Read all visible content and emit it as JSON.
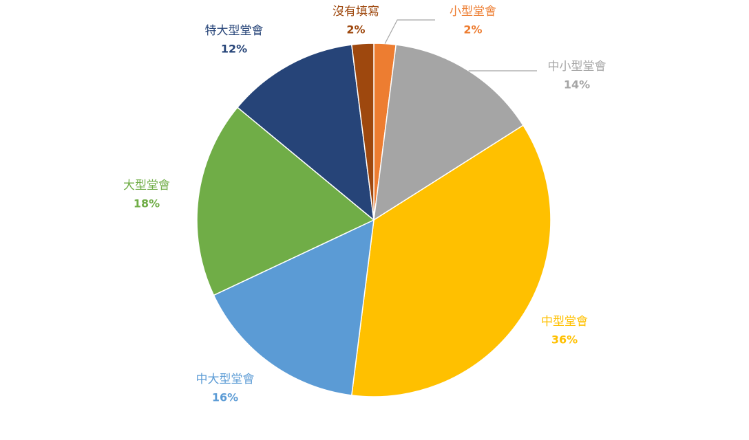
{
  "chart_data": {
    "type": "pie",
    "categories": [
      "小型堂會",
      "中小型堂會",
      "中型堂會",
      "中大型堂會",
      "大型堂會",
      "特大型堂會",
      "沒有填寫"
    ],
    "values": [
      2,
      14,
      36,
      16,
      18,
      12,
      2
    ],
    "value_labels": [
      "2%",
      "14%",
      "36%",
      "16%",
      "18%",
      "12%",
      "2%"
    ],
    "colors": [
      "#ED7D31",
      "#A5A5A5",
      "#FFC000",
      "#5B9BD5",
      "#70AD47",
      "#264478",
      "#9E480E"
    ]
  }
}
